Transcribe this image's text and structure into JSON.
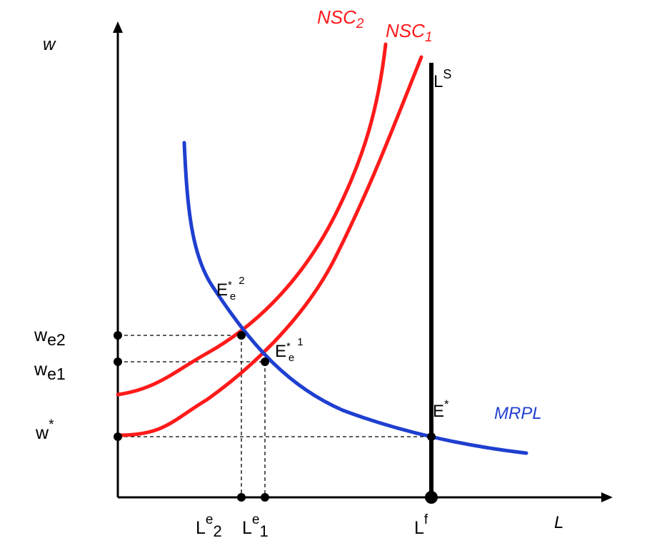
{
  "title": "",
  "colors": {
    "nsc": "#ff1a1a",
    "mrpl": "#1f3fd0",
    "axis": "#000000",
    "labor_supply": "#000000"
  },
  "axes": {
    "y_label": "w",
    "x_label": "L"
  },
  "curves": {
    "nsc1": {
      "base": "NSC",
      "sub": "1"
    },
    "nsc2": {
      "base": "NSC",
      "sub": "2"
    },
    "mrpl": {
      "label": "MRPL"
    },
    "labor_supply": {
      "base": "L",
      "sup": "S"
    }
  },
  "wage_levels": {
    "we2": {
      "base": "w",
      "sub": "e2"
    },
    "we1": {
      "base": "w",
      "sub": "e1"
    },
    "wstar": {
      "base": "w",
      "sup": "*"
    }
  },
  "employment_levels": {
    "le2": {
      "base": "L",
      "sup": "e",
      "sub": "2"
    },
    "le1": {
      "base": "L",
      "sup": "e",
      "sub": "1"
    },
    "lf": {
      "base": "L",
      "sup": "f"
    }
  },
  "equilibria": {
    "ee2": {
      "base": "E",
      "sup": "*",
      "sub": "e",
      "sup2": "2"
    },
    "ee1": {
      "base": "E",
      "sup": "*",
      "sub": "e",
      "sup2": "1"
    },
    "estar": {
      "base": "E",
      "sup": "*"
    }
  }
}
